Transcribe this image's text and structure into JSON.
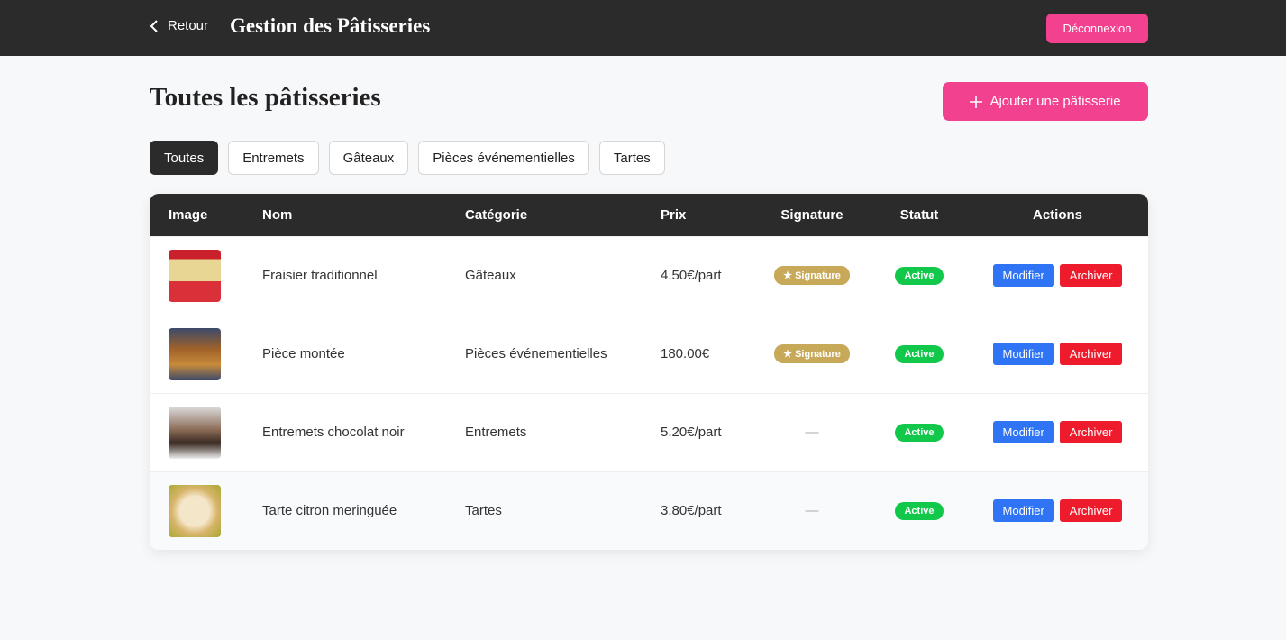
{
  "header": {
    "back": "Retour",
    "title": "Gestion des Pâtisseries",
    "logout": "Déconnexion"
  },
  "page": {
    "title": "Toutes les pâtisseries",
    "add_button": "Ajouter une pâtisserie"
  },
  "filters": [
    "Toutes",
    "Entremets",
    "Gâteaux",
    "Pièces événementielles",
    "Tartes"
  ],
  "table": {
    "columns": [
      "Image",
      "Nom",
      "Catégorie",
      "Prix",
      "Signature",
      "Statut",
      "Actions"
    ],
    "rows": [
      {
        "name": "Fraisier traditionnel",
        "category": "Gâteaux",
        "price": "4.50€/part",
        "signature": "★ Signature",
        "status": "Active",
        "actions": [
          "Modifier",
          "Archiver"
        ]
      },
      {
        "name": "Pièce montée",
        "category": "Pièces événementielles",
        "price": "180.00€",
        "signature": "★ Signature",
        "status": "Active",
        "actions": [
          "Modifier",
          "Archiver"
        ]
      },
      {
        "name": "Entremets chocolat noir",
        "category": "Entremets",
        "price": "5.20€/part",
        "signature": "—",
        "status": "Active",
        "actions": [
          "Modifier",
          "Archiver"
        ]
      },
      {
        "name": "Tarte citron meringuée",
        "category": "Tartes",
        "price": "3.80€/part",
        "signature": "—",
        "status": "Active",
        "actions": [
          "Modifier",
          "Archiver"
        ]
      }
    ]
  }
}
